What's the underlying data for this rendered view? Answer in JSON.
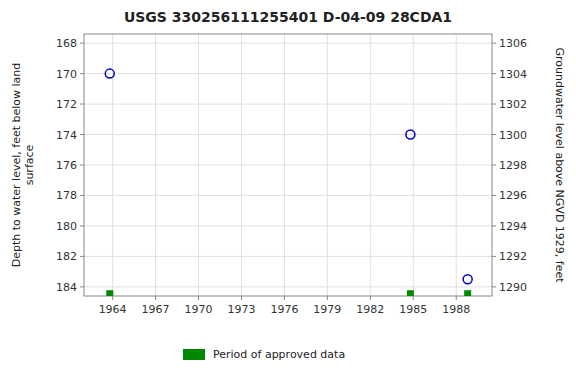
{
  "chart_data": {
    "type": "scatter",
    "title": "USGS 330256111255401 D-04-09 28CDA1",
    "ylabel": "Depth to water level, feet below land\nsurface",
    "y2label": "Groundwater level above NGVD 1929, feet",
    "x": [
      1963.8,
      1984.8,
      1988.8
    ],
    "xlim": [
      1962.0,
      1990.5
    ],
    "xticks": [
      1964,
      1967,
      1970,
      1973,
      1976,
      1979,
      1982,
      1985,
      1988
    ],
    "ylim": [
      184.6,
      167.4
    ],
    "yticks": [
      168,
      170,
      172,
      174,
      176,
      178,
      180,
      182,
      184
    ],
    "y2lim": [
      1289.4,
      1306.6
    ],
    "y2ticks": [
      1290,
      1292,
      1294,
      1296,
      1298,
      1300,
      1302,
      1304,
      1306
    ],
    "grid": true,
    "legend": "bottom",
    "series": [
      {
        "values": [
          170.0,
          174.0,
          183.5
        ],
        "color": "#0000cc",
        "marker": "circle"
      },
      {
        "name": "Period of approved data",
        "values": [
          184.45,
          184.45,
          184.45
        ],
        "color": "#008800",
        "marker": "square"
      }
    ]
  }
}
